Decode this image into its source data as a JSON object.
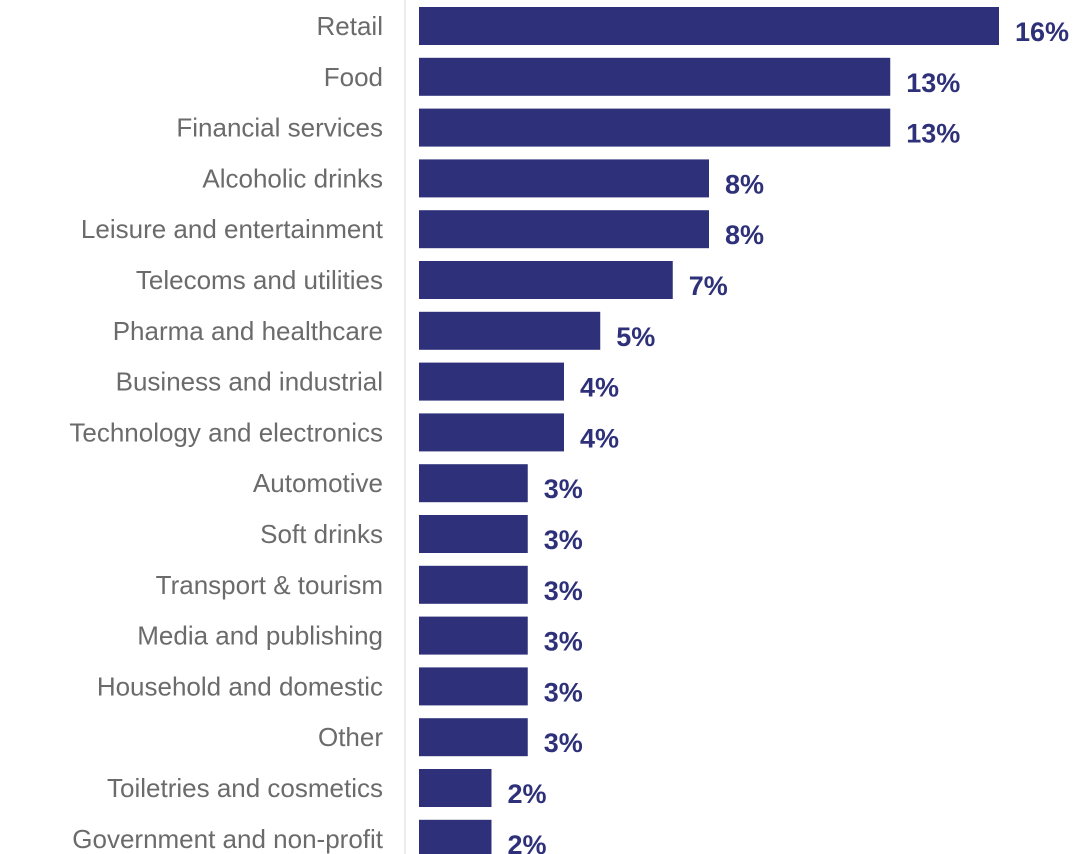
{
  "chart_data": {
    "type": "bar",
    "orientation": "horizontal",
    "categories": [
      "Retail",
      "Food",
      "Financial services",
      "Alcoholic drinks",
      "Leisure and entertainment",
      "Telecoms and utilities",
      "Pharma and healthcare",
      "Business and industrial",
      "Technology and electronics",
      "Automotive",
      "Soft drinks",
      "Transport & tourism",
      "Media and publishing",
      "Household and domestic",
      "Other",
      "Toiletries and cosmetics",
      "Government and non-profit"
    ],
    "values": [
      16,
      13,
      13,
      8,
      8,
      7,
      5,
      4,
      4,
      3,
      3,
      3,
      3,
      3,
      3,
      2,
      2
    ],
    "value_labels": [
      "16%",
      "13%",
      "13%",
      "8%",
      "8%",
      "7%",
      "5%",
      "4%",
      "4%",
      "3%",
      "3%",
      "3%",
      "3%",
      "3%",
      "3%",
      "2%",
      "2%"
    ],
    "unit": "%",
    "xlim": [
      0,
      16
    ],
    "grid": false,
    "legend": "none",
    "bar_color": "#2e3179",
    "label_color": "#6b6b6b",
    "value_color": "#2e3179",
    "axis_color": "#d9d9d9"
  }
}
